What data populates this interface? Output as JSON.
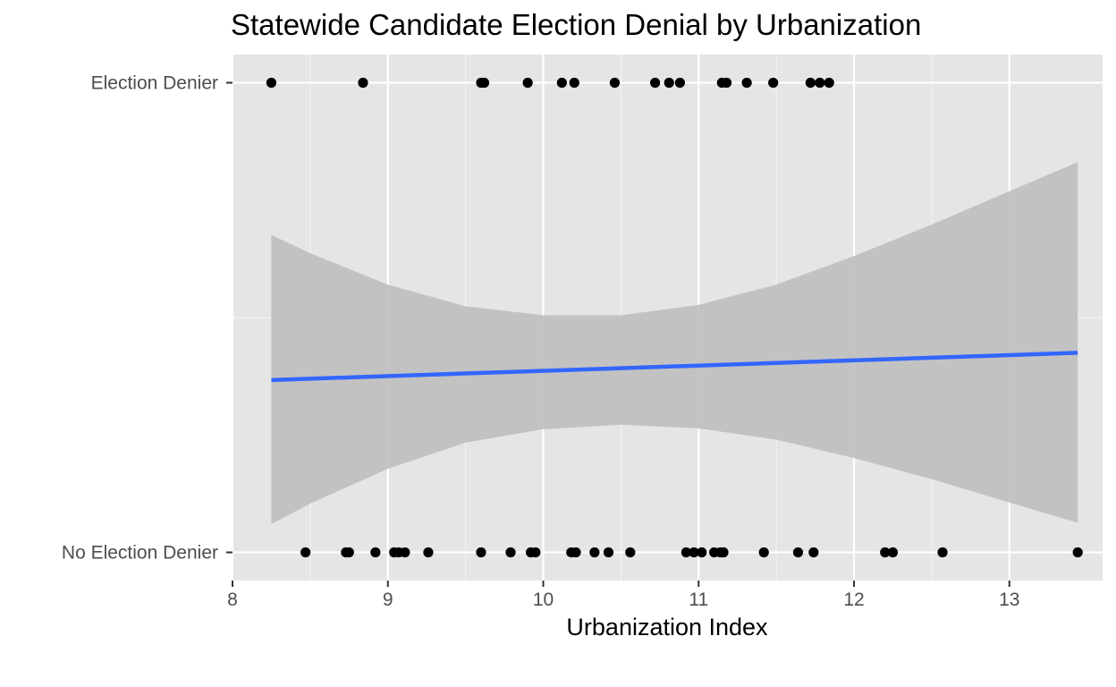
{
  "chart_data": {
    "type": "scatter",
    "title": "Statewide Candidate Election Denial by Urbanization",
    "xlabel": "Urbanization Index",
    "ylabel": "",
    "xlim": [
      8,
      13.6
    ],
    "ylim": [
      0.94,
      2.06
    ],
    "x_ticks": [
      8,
      9,
      10,
      11,
      12,
      13
    ],
    "y_ticks": [
      {
        "value": 1,
        "label": "No Election Denier"
      },
      {
        "value": 2,
        "label": "Election Denier"
      }
    ],
    "grid": true,
    "panel_background": "#e5e5e5",
    "point_color": "#000000",
    "series": [
      {
        "values_y": 2,
        "x": [
          8.25,
          8.84,
          9.6,
          9.62,
          9.9,
          10.12,
          10.2,
          10.46,
          10.72,
          10.81,
          10.88,
          11.15,
          11.18,
          11.31,
          11.48,
          11.72,
          11.78,
          11.84
        ]
      },
      {
        "values_y": 1,
        "x": [
          8.47,
          8.73,
          8.75,
          8.92,
          9.04,
          9.07,
          9.11,
          9.26,
          9.6,
          9.79,
          9.92,
          9.95,
          10.18,
          10.21,
          10.33,
          10.42,
          10.56,
          10.92,
          10.97,
          11.02,
          11.1,
          11.14,
          11.16,
          11.42,
          11.64,
          11.74,
          12.2,
          12.25,
          12.57,
          13.44
        ]
      }
    ],
    "fit": {
      "type": "line",
      "color": "#3366ff",
      "x": [
        8.25,
        13.44
      ],
      "y": [
        1.367,
        1.425
      ]
    },
    "confidence_band": {
      "color": "#bebebe",
      "x": [
        8.25,
        8.5,
        9.0,
        9.5,
        10.0,
        10.5,
        11.0,
        11.5,
        12.0,
        12.5,
        13.0,
        13.44
      ],
      "upper": [
        1.676,
        1.637,
        1.57,
        1.524,
        1.505,
        1.505,
        1.527,
        1.57,
        1.631,
        1.698,
        1.769,
        1.831
      ],
      "lower": [
        1.06,
        1.104,
        1.178,
        1.234,
        1.262,
        1.272,
        1.264,
        1.24,
        1.201,
        1.156,
        1.106,
        1.063
      ]
    }
  }
}
